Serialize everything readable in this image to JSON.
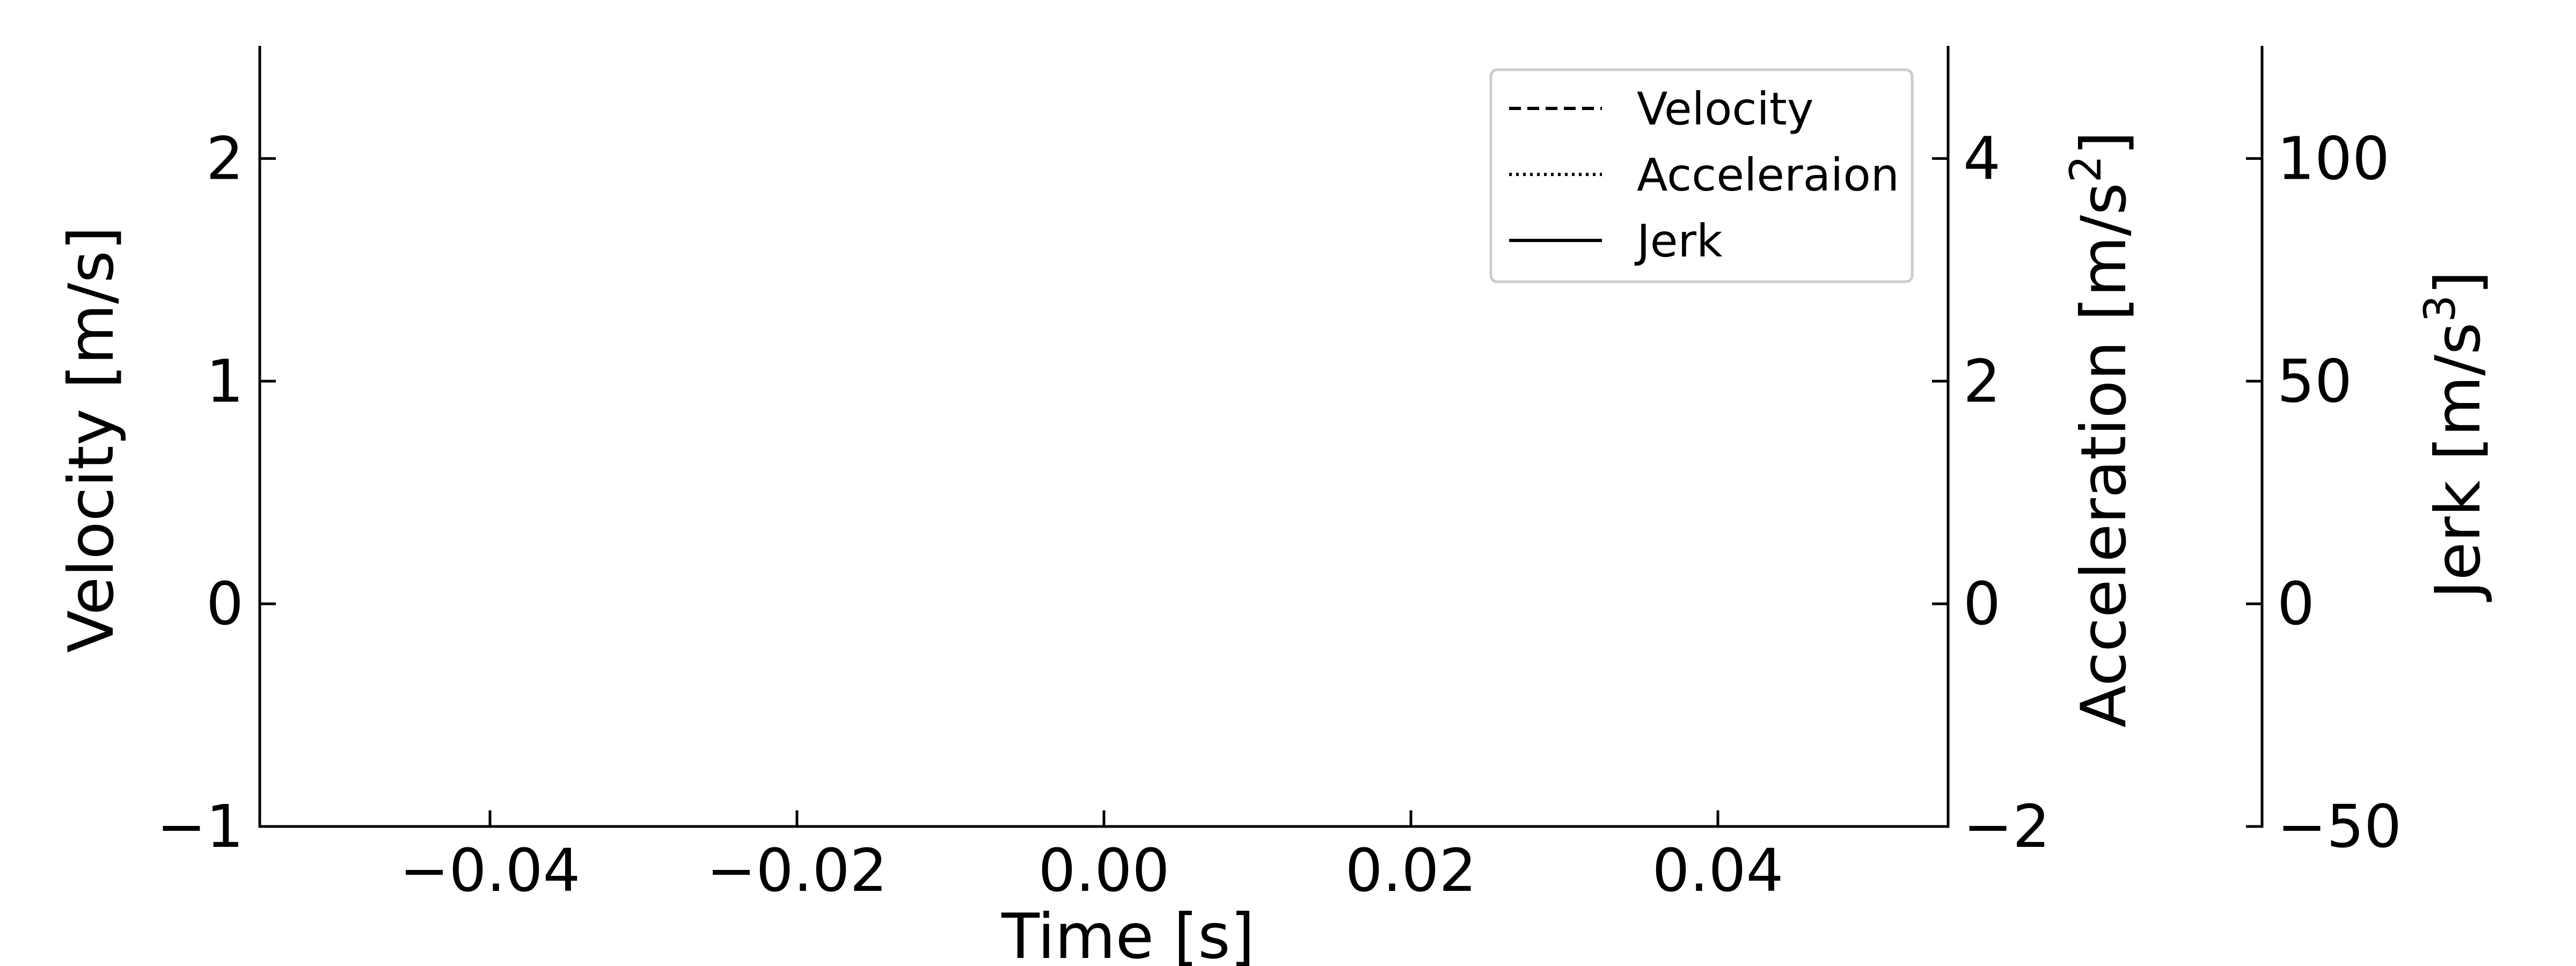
{
  "chart_data": {
    "type": "line",
    "xlabel": "Time [s]",
    "xlim": [
      -0.055,
      0.055
    ],
    "x_ticks": [
      "−0.04",
      "−0.02",
      "0.00",
      "0.02",
      "0.04"
    ],
    "x_tick_values": [
      -0.04,
      -0.02,
      0.0,
      0.02,
      0.04
    ],
    "axes": [
      {
        "id": "velocity",
        "position": "left",
        "label": "Velocity [m/s]",
        "ylim": [
          -1,
          2.5
        ],
        "ticks": [
          "−1",
          "0",
          "1",
          "2"
        ],
        "tick_values": [
          -1,
          0,
          1,
          2
        ]
      },
      {
        "id": "acceleration",
        "position": "right",
        "label_main": "Acceleration [m/s",
        "label_sup": "2",
        "label_end": "]",
        "ylim": [
          -2,
          5
        ],
        "ticks": [
          "−2",
          "0",
          "2",
          "4"
        ],
        "tick_values": [
          -2,
          0,
          2,
          4
        ]
      },
      {
        "id": "jerk",
        "position": "right-offset",
        "label_main": "Jerk [m/s",
        "label_sup": "3",
        "label_end": "]",
        "ylim": [
          -50,
          125
        ],
        "ticks": [
          "−50",
          "0",
          "50",
          "100"
        ],
        "tick_values": [
          -50,
          0,
          50,
          100
        ]
      }
    ],
    "series": [
      {
        "name": "Velocity",
        "style": "dashed",
        "axis": "velocity",
        "x": [],
        "y": []
      },
      {
        "name": "Acceleraion",
        "style": "dotted",
        "axis": "acceleration",
        "x": [],
        "y": []
      },
      {
        "name": "Jerk",
        "style": "solid",
        "axis": "jerk",
        "x": [],
        "y": []
      }
    ],
    "legend_position": "upper-right",
    "grid": false
  }
}
